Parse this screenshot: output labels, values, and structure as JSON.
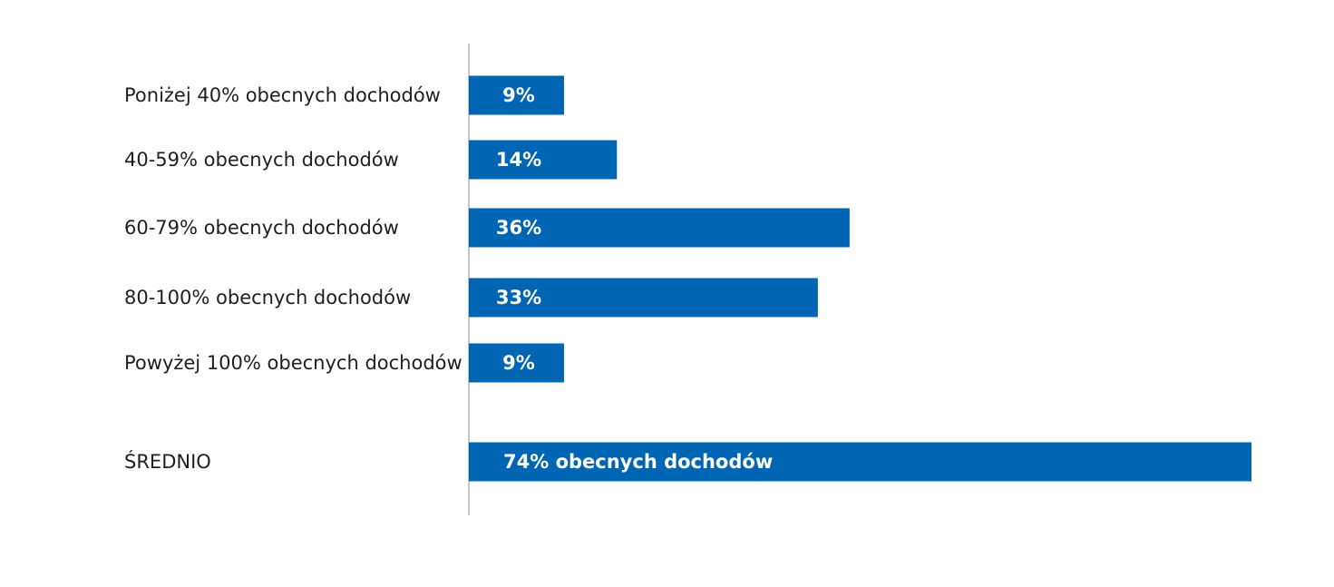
{
  "colors": {
    "bar": "#0066b3",
    "axis": "#b3b3b3",
    "text": "#1f1f1f",
    "bar_text": "#ffffff"
  },
  "chart_data": {
    "type": "bar",
    "orientation": "horizontal",
    "categories": [
      "Poniżej 40% obecnych dochodów",
      "40-59% obecnych dochodów",
      "60-79% obecnych dochodów",
      "80-100% obecnych dochodów",
      "Powyżej 100% obecnych dochodów",
      "ŚREDNIO"
    ],
    "values": [
      9,
      14,
      36,
      33,
      9,
      74
    ],
    "data_labels": [
      "9%",
      "14%",
      "36%",
      "33%",
      "9%",
      "74% obecnych dochodów"
    ],
    "unit": "%",
    "xlim": [
      0,
      74
    ],
    "grid": false,
    "legend": "none"
  }
}
